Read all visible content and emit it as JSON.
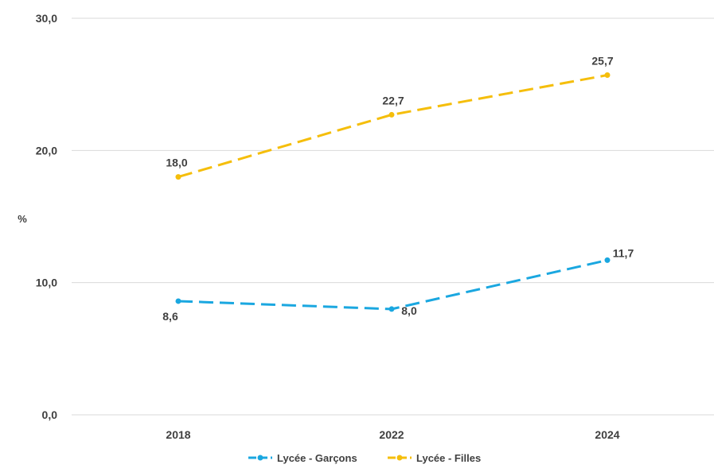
{
  "chart_data": {
    "type": "line",
    "x": [
      "2018",
      "2022",
      "2024"
    ],
    "ylabel": "%",
    "ylim": [
      0,
      30
    ],
    "yticks": [
      "0,0",
      "10,0",
      "20,0",
      "30,0"
    ],
    "grid": "horizontal",
    "legend_position": "bottom",
    "series": [
      {
        "name": "Lycée - Garçons",
        "values": [
          8.6,
          8.0,
          11.7
        ],
        "labels": [
          "8,6",
          "8,0",
          "11,7"
        ],
        "color": "#1aa7e0",
        "dash": "dashed"
      },
      {
        "name": "Lycée - Filles",
        "values": [
          18.0,
          22.7,
          25.7
        ],
        "labels": [
          "18,0",
          "22,7",
          "25,7"
        ],
        "color": "#f5be0b",
        "dash": "dashed"
      }
    ]
  }
}
